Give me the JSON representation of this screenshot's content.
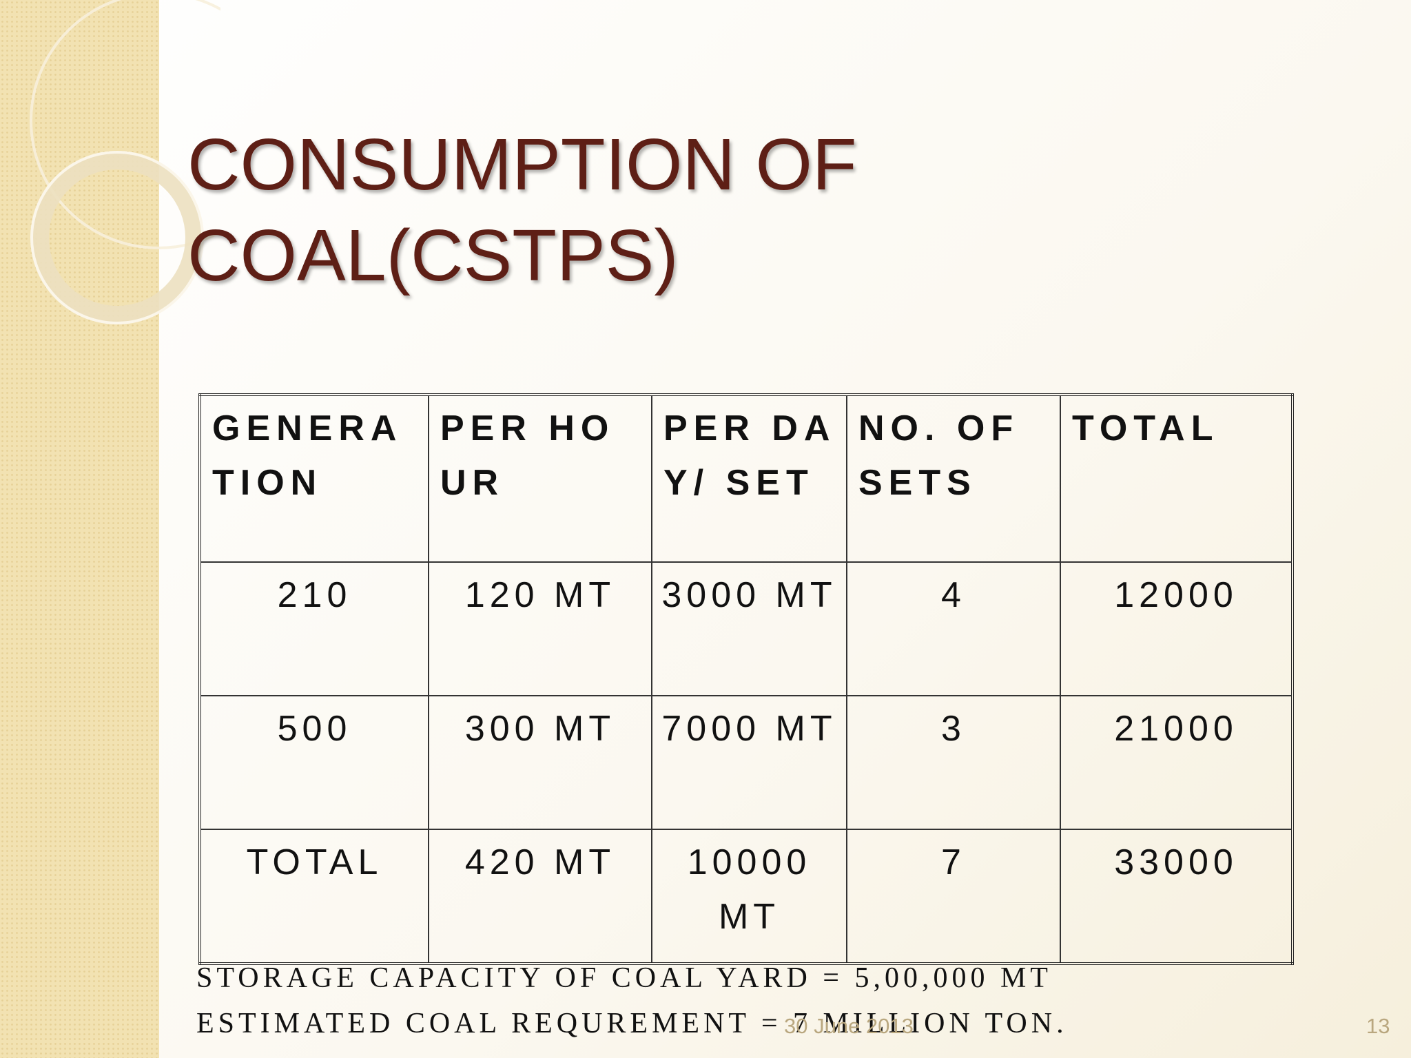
{
  "slide": {
    "title_lines": [
      "CONSUMPTION OF",
      "COAL(CSTPS)"
    ],
    "table": {
      "header": [
        "GENERATION",
        "PER HOUR",
        "PER DAY/ SET",
        "NO. OF SETS",
        "TOTAL"
      ],
      "rows": [
        [
          "210",
          "120 MT",
          "3000 MT",
          "4",
          "12000"
        ],
        [
          "500",
          "300 MT",
          "7000 MT",
          "3",
          "21000"
        ],
        [
          "TOTAL",
          "420 MT",
          "10000 MT",
          "7",
          "33000"
        ]
      ]
    },
    "notes": [
      "STORAGE CAPACITY OF COAL YARD = 5,00,000 MT",
      "ESTIMATED COAL REQUREMENT = 7 MILLION TON."
    ],
    "footer": {
      "date": "30 June 2013",
      "page": "13"
    }
  }
}
